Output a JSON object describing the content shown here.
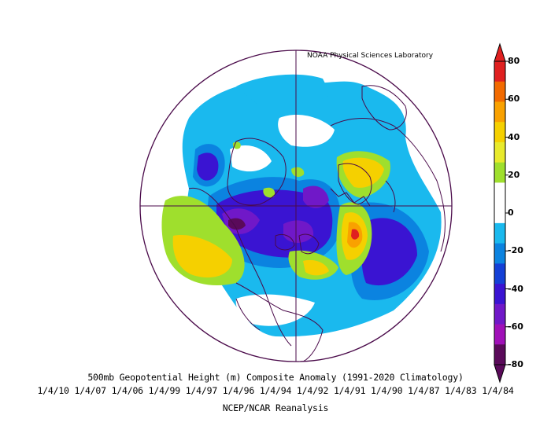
{
  "map": {
    "projection": "north-polar-stereographic",
    "credit": "NOAA Physical Sciences Laboratory",
    "title": "500mb Geopotential Height (m) Composite Anomaly (1991-2020 Climatology)",
    "dates": "1/4/10 1/4/07 1/4/06 1/4/99 1/4/97 1/4/96 1/4/94 1/4/92 1/4/91 1/4/90 1/4/87 1/4/83 1/4/84",
    "source": "NCEP/NCAR Reanalysis"
  },
  "colorbar": {
    "ticks": [
      "80",
      "60",
      "40",
      "20",
      "0",
      "-20",
      "-40",
      "-60",
      "-80"
    ],
    "colors": [
      "#e02020",
      "#f26a00",
      "#f9a100",
      "#f5d000",
      "#e8ea2c",
      "#9fdf2d",
      "#ffffff",
      "#ffffff",
      "#1ab9ee",
      "#0b83e0",
      "#1440d6",
      "#3a14d2",
      "#7018c8",
      "#a010b8",
      "#5a0a5a"
    ]
  }
}
